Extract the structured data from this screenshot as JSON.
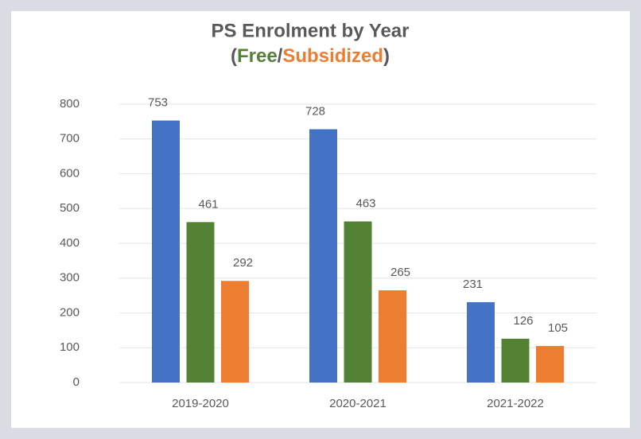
{
  "chart_data": {
    "type": "bar",
    "title": "PS Enrolment by Year",
    "subtitle": [
      {
        "text": "(",
        "color": "#595959"
      },
      {
        "text": "Free",
        "color": "#548235"
      },
      {
        "text": "/",
        "color": "#595959"
      },
      {
        "text": "Subsidized",
        "color": "#ed7d31"
      },
      {
        "text": ")",
        "color": "#595959"
      }
    ],
    "categories": [
      "2019-2020",
      "2020-2021",
      "2021-2022"
    ],
    "series": [
      {
        "color": "#4472c4",
        "label_color": "#595959",
        "values": [
          753,
          728,
          231
        ]
      },
      {
        "color": "#548235",
        "label_color": "#548235",
        "values": [
          461,
          463,
          126
        ]
      },
      {
        "color": "#ed7d31",
        "label_color": "#ed7d31",
        "values": [
          292,
          265,
          105
        ]
      }
    ],
    "ylim": [
      0,
      800
    ],
    "yticks": [
      0,
      100,
      200,
      300,
      400,
      500,
      600,
      700,
      800
    ],
    "grid": true
  }
}
